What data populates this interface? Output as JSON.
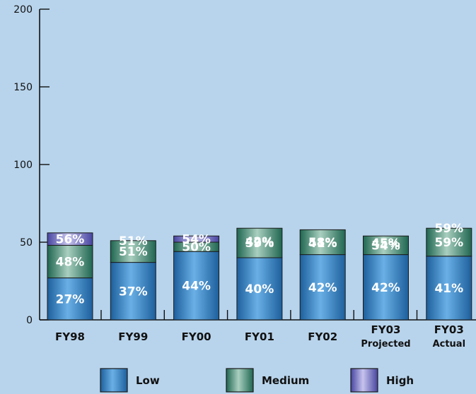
{
  "chart_data": {
    "type": "bar",
    "stacked": true,
    "categories": [
      "FY98",
      "FY99",
      "FY00",
      "FY01",
      "FY02",
      "FY03 Projected",
      "FY03 Actual"
    ],
    "category_labels": [
      [
        "FY98"
      ],
      [
        "FY99"
      ],
      [
        "FY00"
      ],
      [
        "FY01"
      ],
      [
        "FY02"
      ],
      [
        "FY03",
        "Projected"
      ],
      [
        "FY03",
        "Actual"
      ]
    ],
    "series": [
      {
        "name": "Low",
        "values": [
          27,
          37,
          44,
          40,
          42,
          42,
          41
        ],
        "labels": [
          "27%",
          "37%",
          "44%",
          "40%",
          "42%",
          "42%",
          "41%"
        ],
        "color": "#2f86c8"
      },
      {
        "name": "Medium",
        "values": [
          48,
          51,
          50,
          59,
          58,
          54,
          59
        ],
        "labels": [
          "48%",
          "51%",
          "50%",
          "59%",
          "58%",
          "54%",
          "59%"
        ],
        "color": "#3d8f78"
      },
      {
        "name": "High",
        "values": [
          56,
          51,
          54,
          42,
          41,
          45,
          59
        ],
        "labels": [
          "56%",
          "51%",
          "54%",
          "42%",
          "41%",
          "45%",
          "59%"
        ],
        "color": "#6f6cc0"
      }
    ],
    "y_ticks": [
      0,
      50,
      100,
      150,
      200
    ],
    "ylim": [
      0,
      200
    ],
    "grid": false,
    "legend_position": "bottom"
  }
}
